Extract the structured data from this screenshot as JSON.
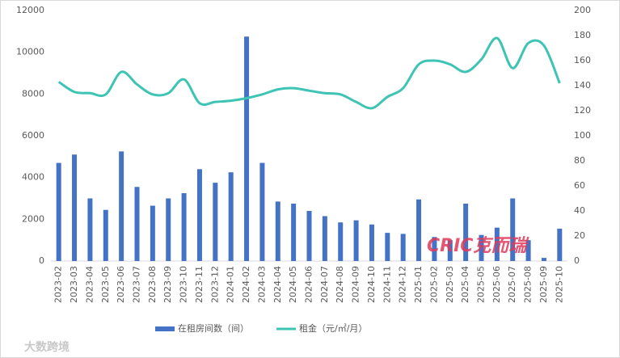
{
  "chart_data": {
    "type": "bar",
    "categories": [
      "2023-02",
      "2023-03",
      "2023-04",
      "2023-05",
      "2023-06",
      "2023-07",
      "2023-08",
      "2023-09",
      "2023-10",
      "2023-11",
      "2023-12",
      "2024-01",
      "2024-02",
      "2024-03",
      "2024-04",
      "2024-05",
      "2024-06",
      "2024-07",
      "2024-08",
      "2024-09",
      "2024-10",
      "2024-11",
      "2024-12",
      "2025-01",
      "2025-02",
      "2025-03",
      "2025-04",
      "2025-05",
      "2025-06",
      "2025-07",
      "2025-08",
      "2025-09",
      "2025-10"
    ],
    "series": [
      {
        "name": "在租房间数（间）",
        "type": "bar",
        "color": "#4472c4",
        "values": [
          4700,
          5100,
          3000,
          2450,
          5250,
          3550,
          2650,
          3000,
          3250,
          4400,
          3750,
          4250,
          10750,
          4700,
          2850,
          2750,
          2400,
          2150,
          1850,
          1950,
          1750,
          1350,
          1300,
          2950,
          1150,
          1000,
          2750,
          1250,
          1600,
          3000,
          1000,
          150,
          1550
        ]
      },
      {
        "name": "租金（元/㎡/月）",
        "type": "line",
        "axis": "y2",
        "color": "#3dc4b4",
        "values": [
          143,
          135,
          134,
          133,
          151,
          141,
          133,
          134,
          145,
          126,
          127,
          128,
          130,
          133,
          137,
          138,
          136,
          134,
          133,
          127,
          122,
          131,
          138,
          157,
          160,
          157,
          151,
          161,
          178,
          154,
          174,
          172,
          142
        ]
      }
    ],
    "ylim": [
      0,
      12000
    ],
    "yticks": [
      0,
      2000,
      4000,
      6000,
      8000,
      10000,
      12000
    ],
    "y2lim": [
      0,
      200
    ],
    "y2ticks": [
      0,
      20,
      40,
      60,
      80,
      100,
      120,
      140,
      160,
      180,
      200
    ],
    "legend": "bottom",
    "watermarks": [
      "CRIC克而瑞",
      "大数跨境"
    ]
  }
}
